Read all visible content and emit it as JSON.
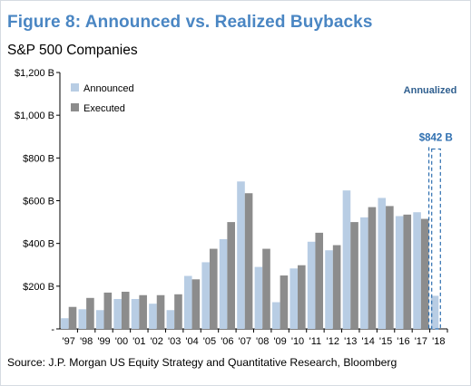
{
  "figure": {
    "title": "Figure 8: Announced vs. Realized Buybacks",
    "subtitle": "S&P 500 Companies",
    "source": "Source: J.P. Morgan US Equity Strategy and Quantitative Research, Bloomberg"
  },
  "colors": {
    "announced": "#b8cde4",
    "executed": "#8c8c8c",
    "title": "#4a86c3",
    "annotation": "#2f6fb0"
  },
  "chart_data": {
    "type": "bar",
    "title": "Figure 8: Announced vs. Realized Buybacks",
    "subtitle": "S&P 500 Companies",
    "xlabel": "",
    "ylabel": "",
    "ylim": [
      0,
      1200
    ],
    "y_unit": "B",
    "y_ticks": [
      {
        "value": 0,
        "label": "-"
      },
      {
        "value": 200,
        "label": "$200 B"
      },
      {
        "value": 400,
        "label": "$400 B"
      },
      {
        "value": 600,
        "label": "$600 B"
      },
      {
        "value": 800,
        "label": "$800 B"
      },
      {
        "value": 1000,
        "label": "$1,000 B"
      },
      {
        "value": 1200,
        "label": "$1,200 B"
      }
    ],
    "grid": false,
    "legend_position": "top-left",
    "categories": [
      "'97",
      "'98",
      "'99",
      "'00",
      "'01",
      "'02",
      "'03",
      "'04",
      "'05",
      "'06",
      "'07",
      "'08",
      "'09",
      "'10",
      "'11",
      "'12",
      "'13",
      "'14",
      "'15",
      "'16",
      "'17",
      "'18"
    ],
    "series": [
      {
        "name": "Announced",
        "values": [
          50,
          92,
          88,
          140,
          140,
          118,
          88,
          248,
          312,
          420,
          690,
          290,
          125,
          283,
          408,
          368,
          648,
          522,
          613,
          528,
          546,
          155
        ]
      },
      {
        "name": "Executed",
        "values": [
          103,
          145,
          170,
          174,
          158,
          158,
          162,
          232,
          375,
          500,
          635,
          375,
          250,
          298,
          450,
          392,
          500,
          570,
          575,
          535,
          515,
          null
        ]
      }
    ],
    "annotations": [
      {
        "label": "Annualized",
        "category": "'18"
      },
      {
        "label": "$842 B",
        "category": "'18",
        "value": 842,
        "style": "dashed-outline-bar"
      }
    ]
  }
}
